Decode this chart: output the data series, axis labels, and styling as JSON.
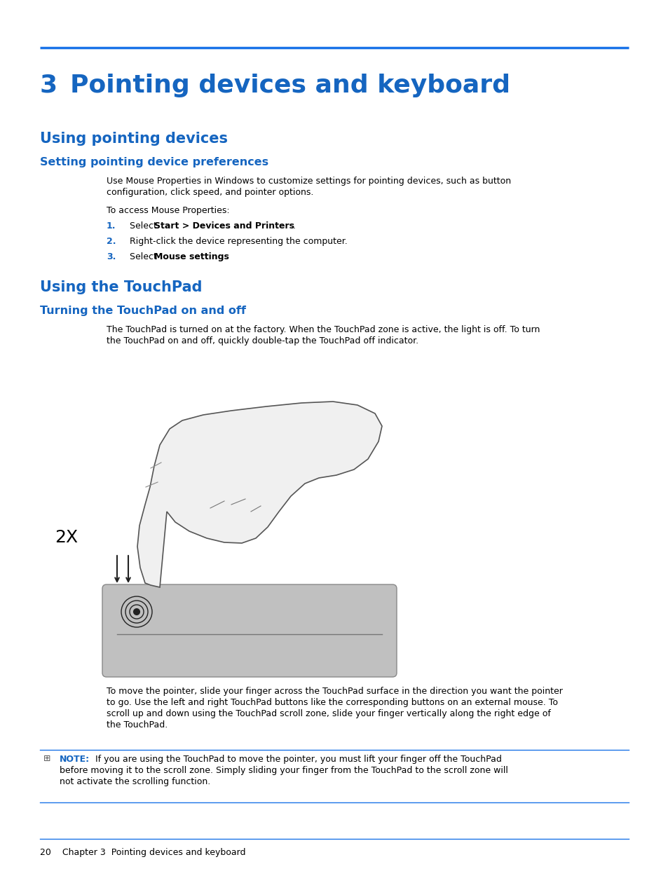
{
  "bg_color": "#ffffff",
  "blue_color": "#1565c0",
  "blue_line_color": "#1a73e8",
  "text_color": "#000000",
  "chapter_number": "3",
  "chapter_title": "Pointing devices and keyboard",
  "section1_title": "Using pointing devices",
  "subsection1_title": "Setting pointing device preferences",
  "body1_line1": "Use Mouse Properties in Windows to customize settings for pointing devices, such as button",
  "body1_line2": "configuration, click speed, and pointer options.",
  "body2": "To access Mouse Properties:",
  "item1_pre": "Select ",
  "item1_bold": "Start > Devices and Printers",
  "item1_post": ".",
  "item2": "Right-click the device representing the computer.",
  "item3_pre": "Select ",
  "item3_bold": "Mouse settings",
  "item3_post": ".",
  "section2_title": "Using the TouchPad",
  "subsection2_title": "Turning the TouchPad on and off",
  "body3_line1": "The TouchPad is turned on at the factory. When the TouchPad zone is active, the light is off. To turn",
  "body3_line2": "the TouchPad on and off, quickly double-tap the TouchPad off indicator.",
  "body4_line1": "To move the pointer, slide your finger across the TouchPad surface in the direction you want the pointer",
  "body4_line2": "to go. Use the left and right TouchPad buttons like the corresponding buttons on an external mouse. To",
  "body4_line3": "scroll up and down using the TouchPad scroll zone, slide your finger vertically along the right edge of",
  "body4_line4": "the TouchPad.",
  "note_label": "NOTE:",
  "note_line1": "  If you are using the TouchPad to move the pointer, you must lift your finger off the TouchPad",
  "note_line2": "before moving it to the scroll zone. Simply sliding your finger from the TouchPad to the scroll zone will",
  "note_line3": "not activate the scrolling function.",
  "footer_text": "20    Chapter 3  Pointing devices and keyboard"
}
